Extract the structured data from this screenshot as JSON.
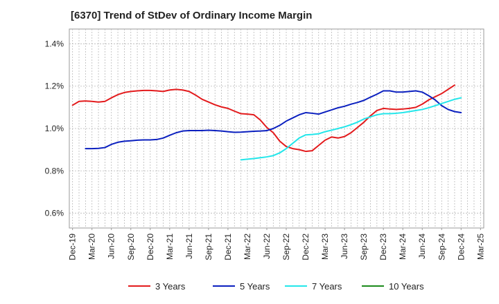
{
  "chart_data": {
    "type": "line",
    "title": "[6370]  Trend of StDev of Ordinary Income Margin",
    "xlabel": "",
    "ylabel": "",
    "x_tick_labels": [
      "Dec-19",
      "Mar-20",
      "Jun-20",
      "Sep-20",
      "Dec-20",
      "Mar-21",
      "Jun-21",
      "Sep-21",
      "Dec-21",
      "Mar-22",
      "Jun-22",
      "Sep-22",
      "Dec-22",
      "Mar-23",
      "Jun-23",
      "Sep-23",
      "Dec-23",
      "Mar-24",
      "Jun-24",
      "Sep-24",
      "Dec-24",
      "Mar-25"
    ],
    "y_tick_labels": [
      "1.4%",
      "1.2%",
      "1.0%",
      "0.8%",
      "0.6%"
    ],
    "y_ticks": [
      1.4,
      1.2,
      1.0,
      0.8,
      0.6
    ],
    "ylim": [
      0.53,
      1.47
    ],
    "x_count": 64,
    "grid": true,
    "legend_position": "bottom",
    "series": [
      {
        "name": "3 Years",
        "color": "#e31a1c",
        "start_index": 0,
        "values": [
          1.11,
          1.128,
          1.13,
          1.128,
          1.125,
          1.128,
          1.145,
          1.16,
          1.17,
          1.175,
          1.178,
          1.18,
          1.18,
          1.178,
          1.175,
          1.182,
          1.185,
          1.182,
          1.175,
          1.158,
          1.138,
          1.125,
          1.112,
          1.102,
          1.095,
          1.082,
          1.07,
          1.068,
          1.065,
          1.04,
          1.005,
          0.98,
          0.94,
          0.915,
          0.905,
          0.9,
          0.892,
          0.895,
          0.92,
          0.945,
          0.96,
          0.955,
          0.962,
          0.98,
          1.005,
          1.03,
          1.06,
          1.085,
          1.095,
          1.092,
          1.09,
          1.092,
          1.095,
          1.1,
          1.115,
          1.135,
          1.15,
          1.165,
          1.185,
          1.205
        ]
      },
      {
        "name": "5 Years",
        "color": "#0a1fbf",
        "start_index": 2,
        "values": [
          0.905,
          0.905,
          0.906,
          0.91,
          0.925,
          0.935,
          0.94,
          0.942,
          0.945,
          0.946,
          0.946,
          0.948,
          0.955,
          0.968,
          0.98,
          0.988,
          0.99,
          0.99,
          0.99,
          0.992,
          0.99,
          0.988,
          0.985,
          0.982,
          0.983,
          0.985,
          0.987,
          0.988,
          0.99,
          1.0,
          1.015,
          1.035,
          1.05,
          1.065,
          1.075,
          1.072,
          1.068,
          1.078,
          1.088,
          1.098,
          1.105,
          1.115,
          1.123,
          1.133,
          1.148,
          1.162,
          1.178,
          1.178,
          1.172,
          1.172,
          1.175,
          1.178,
          1.172,
          1.155,
          1.135,
          1.108,
          1.09,
          1.08,
          1.075
        ]
      },
      {
        "name": "7 Years",
        "color": "#22e6ea",
        "start_index": 26,
        "values": [
          0.852,
          0.855,
          0.858,
          0.862,
          0.866,
          0.872,
          0.885,
          0.905,
          0.93,
          0.955,
          0.97,
          0.972,
          0.975,
          0.985,
          0.992,
          1.0,
          1.008,
          1.018,
          1.03,
          1.045,
          1.055,
          1.065,
          1.07,
          1.07,
          1.072,
          1.075,
          1.08,
          1.085,
          1.09,
          1.098,
          1.108,
          1.118,
          1.128,
          1.138,
          1.145
        ]
      },
      {
        "name": "10 Years",
        "color": "#1a8a1a",
        "start_index": 0,
        "values": []
      }
    ]
  }
}
